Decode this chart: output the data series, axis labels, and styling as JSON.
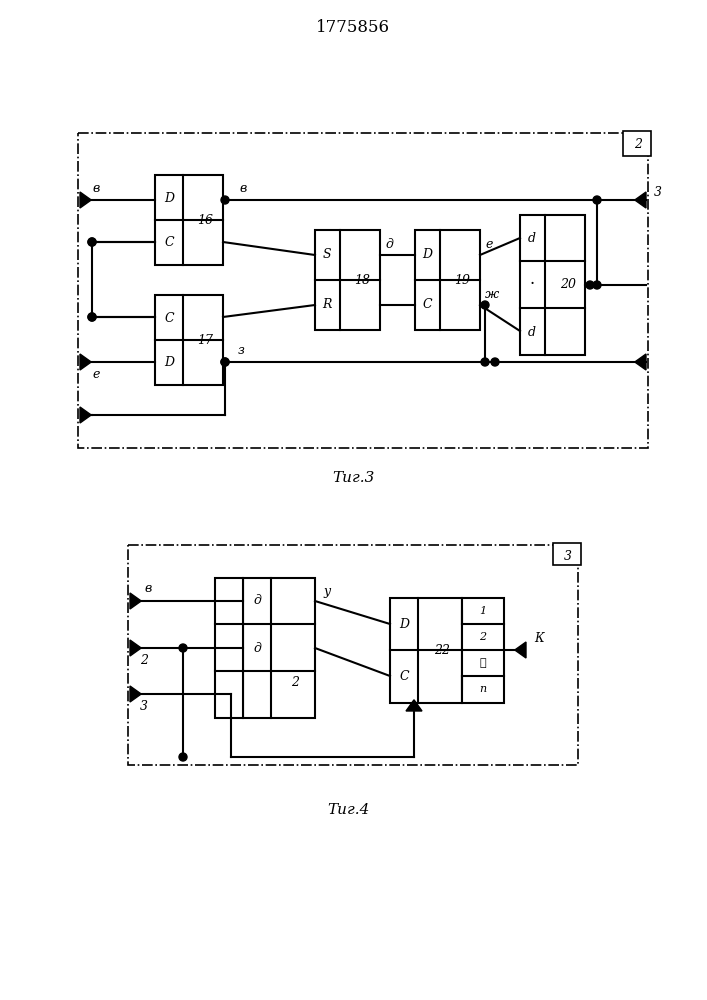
{
  "title": "1775856",
  "fig3_label": "Τиг.3",
  "fig4_label": "Τиг.4",
  "background": "#ffffff",
  "line_color": "#000000"
}
